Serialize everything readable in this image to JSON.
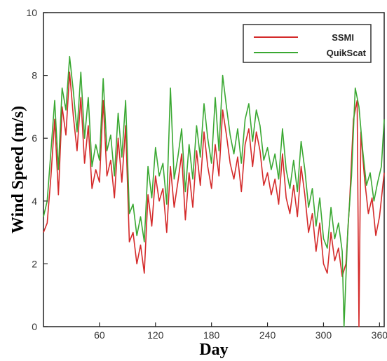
{
  "chart_data": {
    "type": "line",
    "title": "",
    "xlabel": "Day",
    "ylabel": "Wind Speed (m/s)",
    "xlim": [
      0,
      365
    ],
    "ylim": [
      0,
      10
    ],
    "xticks": [
      60,
      120,
      180,
      240,
      300,
      360
    ],
    "xtick_labels": [
      "60",
      "120",
      "180",
      "240",
      "300",
      "360"
    ],
    "yticks": [
      0,
      2,
      4,
      6,
      8,
      10
    ],
    "ytick_labels": [
      "0",
      "2",
      "4",
      "6",
      "8",
      "10"
    ],
    "grid": false,
    "legend_position": "top-right",
    "series": [
      {
        "name": "SSMI",
        "color": "#d42a2a",
        "x": [
          0,
          4,
          8,
          12,
          16,
          20,
          24,
          28,
          32,
          36,
          40,
          44,
          48,
          52,
          56,
          60,
          64,
          68,
          72,
          76,
          80,
          84,
          88,
          92,
          96,
          100,
          104,
          108,
          112,
          116,
          120,
          124,
          128,
          132,
          136,
          140,
          144,
          148,
          152,
          156,
          160,
          164,
          168,
          172,
          176,
          180,
          184,
          188,
          192,
          196,
          200,
          204,
          208,
          212,
          216,
          220,
          224,
          228,
          232,
          236,
          240,
          244,
          248,
          252,
          256,
          260,
          264,
          268,
          272,
          276,
          280,
          284,
          288,
          292,
          296,
          300,
          304,
          308,
          312,
          316,
          320,
          324,
          328,
          332,
          336,
          338,
          340,
          344,
          348,
          352,
          356,
          360,
          365
        ],
        "y": [
          3.0,
          3.3,
          4.8,
          6.6,
          4.2,
          7.0,
          6.1,
          8.1,
          6.7,
          5.6,
          7.3,
          5.2,
          6.4,
          4.4,
          5.0,
          4.6,
          7.2,
          4.8,
          5.3,
          4.1,
          6.0,
          4.6,
          6.4,
          2.7,
          3.0,
          2.0,
          2.6,
          1.7,
          4.2,
          3.2,
          4.8,
          4.0,
          4.4,
          3.0,
          5.1,
          3.8,
          4.6,
          5.5,
          3.4,
          4.9,
          3.8,
          5.6,
          4.5,
          6.2,
          5.1,
          4.4,
          5.8,
          4.8,
          6.9,
          6.1,
          5.2,
          4.7,
          5.4,
          4.3,
          5.8,
          6.3,
          5.1,
          6.2,
          5.6,
          4.5,
          4.9,
          4.2,
          4.7,
          3.9,
          5.5,
          4.1,
          3.6,
          4.5,
          3.5,
          5.1,
          4.2,
          3.0,
          3.6,
          2.4,
          3.3,
          2.0,
          1.7,
          3.0,
          2.1,
          2.5,
          1.6,
          2.0,
          4.0,
          6.6,
          7.2,
          0.0,
          6.2,
          4.7,
          3.6,
          4.1,
          2.9,
          3.5,
          4.9
        ]
      },
      {
        "name": "QuikScat",
        "color": "#3aa832",
        "x": [
          0,
          4,
          8,
          12,
          16,
          20,
          24,
          28,
          32,
          36,
          40,
          44,
          48,
          52,
          56,
          60,
          64,
          68,
          72,
          76,
          80,
          84,
          88,
          92,
          96,
          100,
          104,
          108,
          112,
          116,
          120,
          124,
          128,
          132,
          136,
          140,
          144,
          148,
          152,
          156,
          160,
          164,
          168,
          172,
          176,
          180,
          184,
          188,
          192,
          196,
          200,
          204,
          208,
          212,
          216,
          220,
          224,
          228,
          232,
          236,
          240,
          244,
          248,
          252,
          256,
          260,
          264,
          268,
          272,
          276,
          280,
          284,
          288,
          292,
          296,
          300,
          304,
          308,
          312,
          316,
          320,
          322,
          326,
          330,
          334,
          338,
          342,
          346,
          350,
          354,
          358,
          362,
          365
        ],
        "y": [
          3.5,
          4.0,
          5.6,
          7.2,
          5.0,
          7.6,
          6.9,
          8.6,
          7.5,
          6.2,
          8.1,
          6.0,
          7.3,
          5.1,
          5.8,
          5.3,
          7.9,
          5.6,
          6.1,
          4.8,
          6.8,
          5.4,
          7.2,
          3.6,
          3.9,
          2.9,
          3.5,
          2.7,
          5.1,
          4.1,
          5.7,
          4.8,
          5.2,
          3.9,
          7.6,
          4.7,
          5.4,
          6.3,
          4.3,
          5.8,
          4.7,
          6.4,
          5.4,
          7.1,
          6.0,
          5.2,
          7.3,
          5.6,
          8.0,
          7.0,
          6.1,
          5.5,
          6.3,
          5.2,
          6.6,
          7.1,
          5.9,
          6.9,
          6.4,
          5.3,
          5.7,
          5.0,
          5.5,
          4.7,
          6.3,
          5.0,
          4.4,
          5.3,
          4.3,
          5.9,
          5.0,
          3.8,
          4.4,
          3.2,
          4.1,
          2.8,
          2.5,
          3.8,
          2.8,
          3.3,
          2.4,
          0.0,
          3.1,
          4.8,
          7.6,
          7.0,
          5.6,
          4.5,
          4.9,
          4.0,
          4.6,
          5.1,
          6.6
        ]
      }
    ]
  }
}
